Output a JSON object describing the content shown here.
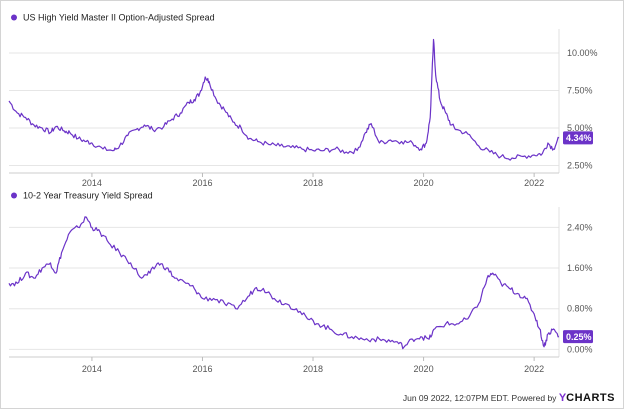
{
  "chart_data": [
    {
      "type": "line",
      "title": "US High Yield Master II Option-Adjusted Spread",
      "x_ticks": [
        "2014",
        "2016",
        "2018",
        "2020",
        "2022"
      ],
      "y_ticks": [
        "2.50%",
        "5.00%",
        "7.50%",
        "10.00%"
      ],
      "y_tick_values": [
        2.5,
        5.0,
        7.5,
        10.0
      ],
      "ylim": [
        2.0,
        11.6
      ],
      "xlim": [
        2012.5,
        2022.45
      ],
      "last_value_label": "4.34%",
      "last_value": 4.34,
      "color": "#6b33c8",
      "series": [
        {
          "x": [
            2012.5,
            2012.65,
            2012.8,
            2012.95,
            2013.1,
            2013.25,
            2013.35,
            2013.5,
            2013.6,
            2013.75,
            2013.9,
            2014.0,
            2014.2,
            2014.4,
            2014.5,
            2014.65,
            2014.8,
            2014.95,
            2015.1,
            2015.3,
            2015.45,
            2015.6,
            2015.75,
            2015.85,
            2015.95,
            2016.05,
            2016.12,
            2016.25,
            2016.4,
            2016.55,
            2016.7,
            2016.85,
            2017.0,
            2017.2,
            2017.4,
            2017.6,
            2017.8,
            2018.0,
            2018.2,
            2018.4,
            2018.6,
            2018.8,
            2018.95,
            2019.05,
            2019.2,
            2019.4,
            2019.6,
            2019.8,
            2019.95,
            2020.05,
            2020.12,
            2020.18,
            2020.22,
            2020.3,
            2020.4,
            2020.5,
            2020.6,
            2020.8,
            2021.0,
            2021.2,
            2021.4,
            2021.6,
            2021.8,
            2022.0,
            2022.15,
            2022.25,
            2022.35,
            2022.45
          ],
          "y": [
            6.8,
            6.0,
            5.7,
            5.2,
            5.0,
            4.7,
            5.1,
            4.8,
            4.7,
            4.3,
            4.1,
            4.0,
            3.6,
            3.5,
            3.8,
            4.5,
            4.9,
            5.2,
            4.9,
            5.1,
            5.6,
            6.0,
            6.7,
            6.9,
            7.3,
            8.4,
            8.1,
            6.9,
            6.2,
            5.4,
            5.0,
            4.3,
            4.1,
            3.9,
            3.8,
            3.7,
            3.6,
            3.5,
            3.5,
            3.6,
            3.4,
            3.5,
            4.7,
            5.3,
            4.0,
            4.2,
            4.1,
            4.0,
            3.6,
            4.0,
            5.7,
            10.9,
            8.5,
            6.8,
            6.0,
            5.2,
            4.9,
            4.6,
            3.8,
            3.4,
            3.1,
            3.0,
            3.1,
            3.2,
            3.3,
            4.0,
            3.6,
            4.34
          ]
        }
      ]
    },
    {
      "type": "line",
      "title": "10-2 Year Treasury Yield Spread",
      "x_ticks": [
        "2014",
        "2016",
        "2018",
        "2020",
        "2022"
      ],
      "y_ticks": [
        "0.00%",
        "0.80%",
        "1.60%",
        "2.40%"
      ],
      "y_tick_values": [
        0.0,
        0.8,
        1.6,
        2.4
      ],
      "ylim": [
        -0.15,
        2.8
      ],
      "xlim": [
        2012.5,
        2022.45
      ],
      "last_value_label": "0.25%",
      "last_value": 0.25,
      "color": "#6b33c8",
      "series": [
        {
          "x": [
            2012.5,
            2012.65,
            2012.8,
            2012.95,
            2013.1,
            2013.25,
            2013.35,
            2013.45,
            2013.6,
            2013.75,
            2013.9,
            2014.0,
            2014.15,
            2014.3,
            2014.5,
            2014.7,
            2014.9,
            2015.05,
            2015.2,
            2015.35,
            2015.5,
            2015.7,
            2015.85,
            2016.0,
            2016.2,
            2016.4,
            2016.6,
            2016.8,
            2016.95,
            2017.1,
            2017.3,
            2017.5,
            2017.7,
            2017.9,
            2018.1,
            2018.3,
            2018.5,
            2018.7,
            2018.9,
            2019.1,
            2019.3,
            2019.5,
            2019.65,
            2019.8,
            2019.95,
            2020.1,
            2020.2,
            2020.4,
            2020.6,
            2020.8,
            2021.0,
            2021.15,
            2021.25,
            2021.4,
            2021.55,
            2021.7,
            2021.85,
            2022.0,
            2022.1,
            2022.18,
            2022.25,
            2022.35,
            2022.45
          ],
          "y": [
            1.3,
            1.3,
            1.5,
            1.4,
            1.6,
            1.7,
            1.5,
            1.9,
            2.3,
            2.4,
            2.6,
            2.4,
            2.3,
            2.1,
            1.9,
            1.7,
            1.4,
            1.5,
            1.7,
            1.6,
            1.4,
            1.3,
            1.2,
            1.0,
            1.0,
            0.9,
            0.8,
            1.0,
            1.2,
            1.2,
            1.0,
            0.9,
            0.8,
            0.6,
            0.5,
            0.4,
            0.3,
            0.25,
            0.2,
            0.2,
            0.18,
            0.15,
            0.05,
            0.2,
            0.25,
            0.2,
            0.4,
            0.5,
            0.5,
            0.6,
            0.9,
            1.4,
            1.5,
            1.3,
            1.2,
            1.1,
            1.0,
            0.7,
            0.4,
            0.05,
            0.3,
            0.4,
            0.25
          ]
        }
      ]
    }
  ],
  "footer": {
    "timestamp": "Jun 09 2022, 12:07PM EDT.",
    "powered_by": "Powered by",
    "brand_y": "Y",
    "brand_rest": "CHARTS"
  }
}
